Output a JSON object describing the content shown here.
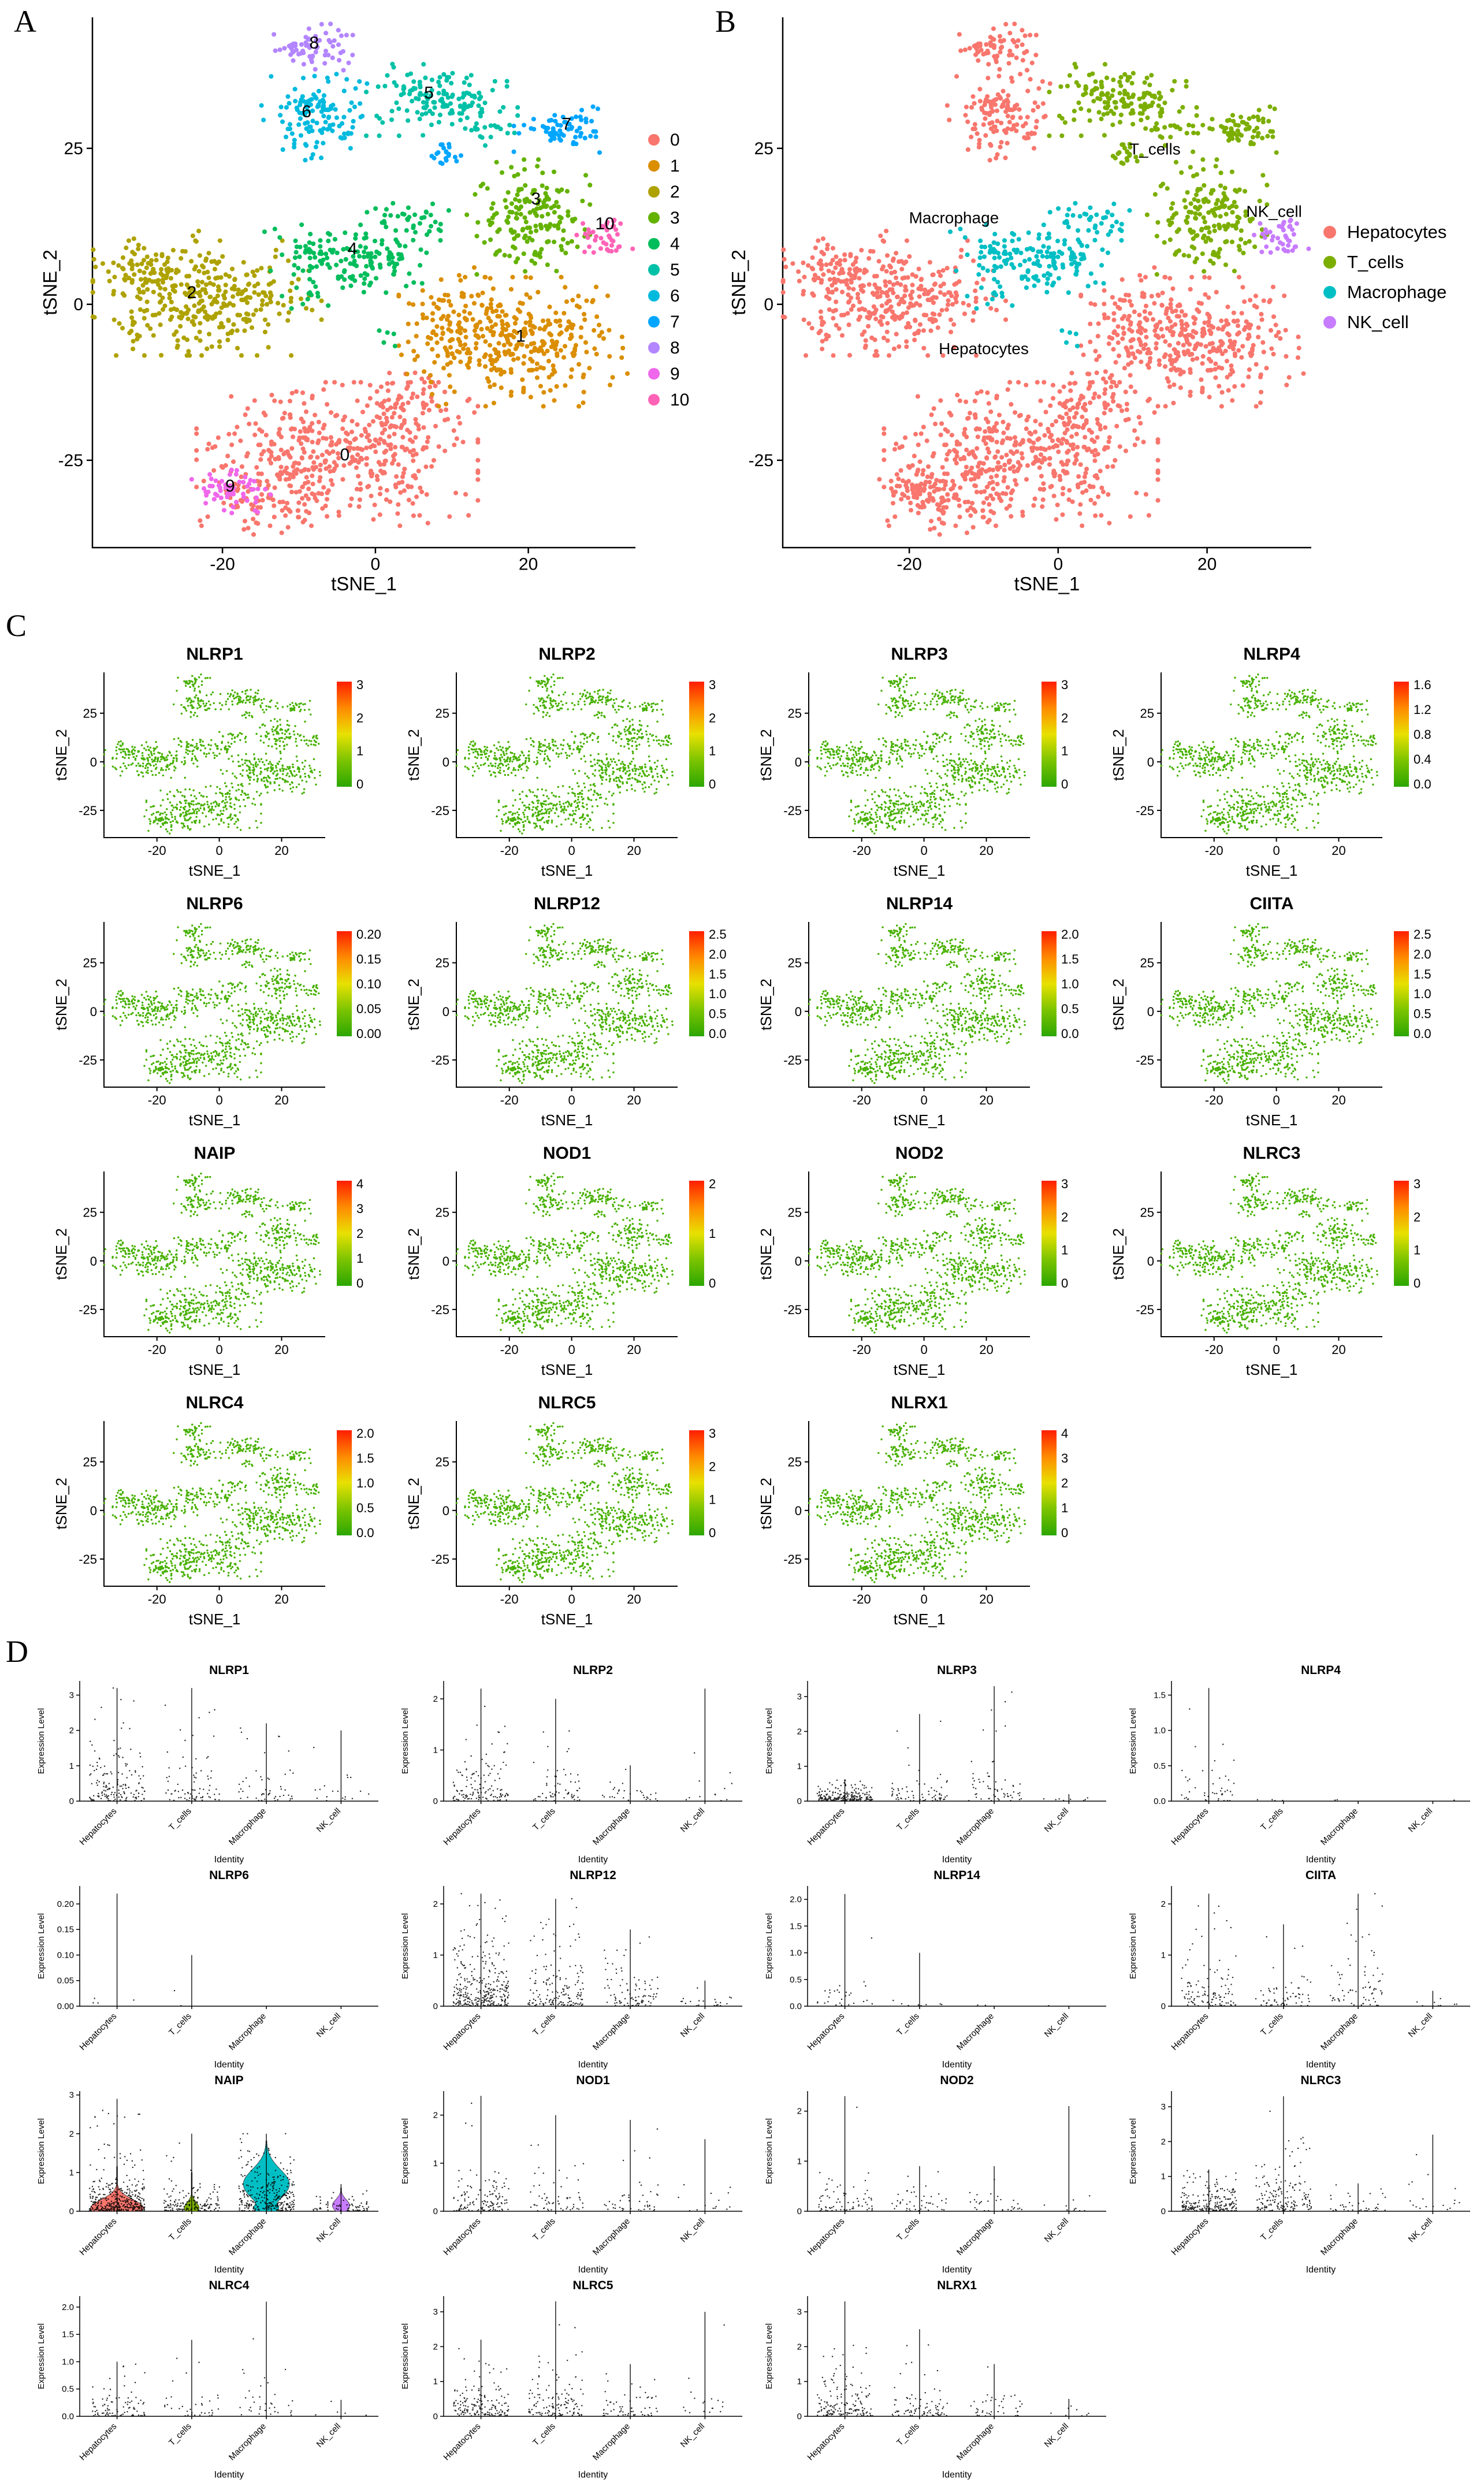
{
  "chart_data": {
    "panel_labels": {
      "a": "A",
      "b": "B",
      "c": "C",
      "d": "D"
    },
    "tsne": {
      "type": "scatter",
      "x_label": "tSNE_1",
      "y_label": "tSNE_2",
      "x_ticks": [
        "-20",
        "0",
        "20"
      ],
      "y_ticks": [
        "-25",
        "0",
        "25"
      ],
      "x_lim": [
        -37,
        34
      ],
      "y_lim": [
        -39,
        46
      ],
      "clusters": [
        {
          "id": "0",
          "color": "#F8766D",
          "label_pos": [
            -4,
            -25
          ],
          "blobs": [
            [
              -5,
              -24,
              8,
              5,
              420
            ],
            [
              -14,
              -30,
              4,
              3,
              90
            ],
            [
              4,
              -16,
              4,
              3,
              70
            ]
          ]
        },
        {
          "id": "1",
          "color": "#DB8E00",
          "label_pos": [
            19,
            -6
          ],
          "blobs": [
            [
              18,
              -6,
              6.5,
              4.5,
              360
            ],
            [
              10,
              -1,
              3,
              3,
              50
            ]
          ]
        },
        {
          "id": "2",
          "color": "#AEA200",
          "label_pos": [
            -24,
            1
          ],
          "blobs": [
            [
              -22,
              1,
              6.5,
              4,
              330
            ],
            [
              -30,
              6,
              3,
              2.5,
              60
            ]
          ]
        },
        {
          "id": "3",
          "color": "#64B200",
          "label_pos": [
            21,
            16
          ],
          "blobs": [
            [
              20,
              14,
              3.5,
              4,
              170
            ]
          ]
        },
        {
          "id": "4",
          "color": "#00BD5C",
          "label_pos": [
            -3,
            8
          ],
          "blobs": [
            [
              -3,
              7,
              5,
              2.5,
              150
            ],
            [
              4,
              12,
              3,
              2.5,
              50
            ],
            [
              -9,
              0,
              2,
              2,
              8
            ],
            [
              1,
              -4,
              1.5,
              1.5,
              5
            ]
          ]
        },
        {
          "id": "5",
          "color": "#00C1A7",
          "label_pos": [
            7,
            33
          ],
          "blobs": [
            [
              8,
              33,
              4,
              2.6,
              130
            ],
            [
              14,
              30,
              2,
              2,
              35
            ]
          ]
        },
        {
          "id": "6",
          "color": "#00BADE",
          "label_pos": [
            -9,
            30
          ],
          "blobs": [
            [
              -8,
              30,
              3,
              3,
              130
            ]
          ]
        },
        {
          "id": "7",
          "color": "#00A6FF",
          "label_pos": [
            25,
            28
          ],
          "blobs": [
            [
              25,
              28,
              3,
              1.6,
              65
            ],
            [
              9,
              24,
              1.5,
              1.2,
              20
            ]
          ]
        },
        {
          "id": "8",
          "color": "#B385FF",
          "label_pos": [
            -8,
            41
          ],
          "blobs": [
            [
              -8,
              41,
              2.5,
              1.8,
              70
            ]
          ]
        },
        {
          "id": "9",
          "color": "#EF67EB",
          "label_pos": [
            -19,
            -30
          ],
          "blobs": [
            [
              -19,
              -30,
              2.4,
              1.5,
              60
            ]
          ]
        },
        {
          "id": "10",
          "color": "#FF63B6",
          "label_pos": [
            30,
            12
          ],
          "blobs": [
            [
              30,
              11,
              1.6,
              1.4,
              40
            ]
          ]
        }
      ]
    },
    "panelB": {
      "type": "scatter",
      "cell_types": [
        {
          "name": "Hepatocytes",
          "color": "#F8766D",
          "clusters": [
            "0",
            "1",
            "2",
            "6",
            "8",
            "9"
          ]
        },
        {
          "name": "T_cells",
          "color": "#7CAE00",
          "clusters": [
            "3",
            "5",
            "7"
          ]
        },
        {
          "name": "Macrophage",
          "color": "#00BFC4",
          "clusters": [
            "4"
          ]
        },
        {
          "name": "NK_cell",
          "color": "#C77CFF",
          "clusters": [
            "10"
          ]
        }
      ],
      "annotations": [
        {
          "text": "T_cells",
          "pos": [
            13,
            24
          ]
        },
        {
          "text": "Macrophage",
          "pos": [
            -14,
            13
          ]
        },
        {
          "text": "NK_cell",
          "pos": [
            29,
            14
          ]
        },
        {
          "text": "Hepatocytes",
          "pos": [
            -10,
            -8
          ]
        }
      ]
    },
    "panelC": {
      "type": "scatter-grid",
      "point_color": "#47B000",
      "gradient_stops": [
        [
          "0%",
          "#FF1E00"
        ],
        [
          "25%",
          "#FF8A00"
        ],
        [
          "50%",
          "#E8E100"
        ],
        [
          "75%",
          "#7CC400"
        ],
        [
          "100%",
          "#2CA600"
        ]
      ],
      "genes": [
        {
          "name": "NLRP1",
          "legend_ticks": [
            "3",
            "2",
            "1",
            "0"
          ]
        },
        {
          "name": "NLRP2",
          "legend_ticks": [
            "3",
            "2",
            "1",
            "0"
          ]
        },
        {
          "name": "NLRP3",
          "legend_ticks": [
            "3",
            "2",
            "1",
            "0"
          ]
        },
        {
          "name": "NLRP4",
          "legend_ticks": [
            "1.6",
            "1.2",
            "0.8",
            "0.4",
            "0.0"
          ]
        },
        {
          "name": "NLRP6",
          "legend_ticks": [
            "0.20",
            "0.15",
            "0.10",
            "0.05",
            "0.00"
          ]
        },
        {
          "name": "NLRP12",
          "legend_ticks": [
            "2.5",
            "2.0",
            "1.5",
            "1.0",
            "0.5",
            "0.0"
          ]
        },
        {
          "name": "NLRP14",
          "legend_ticks": [
            "2.0",
            "1.5",
            "1.0",
            "0.5",
            "0.0"
          ]
        },
        {
          "name": "CIITA",
          "legend_ticks": [
            "2.5",
            "2.0",
            "1.5",
            "1.0",
            "0.5",
            "0.0"
          ]
        },
        {
          "name": "NAIP",
          "legend_ticks": [
            "4",
            "3",
            "2",
            "1",
            "0"
          ]
        },
        {
          "name": "NOD1",
          "legend_ticks": [
            "2",
            "1",
            "0"
          ]
        },
        {
          "name": "NOD2",
          "legend_ticks": [
            "3",
            "2",
            "1",
            "0"
          ]
        },
        {
          "name": "NLRC3",
          "legend_ticks": [
            "3",
            "2",
            "1",
            "0"
          ]
        },
        {
          "name": "NLRC4",
          "legend_ticks": [
            "2.0",
            "1.5",
            "1.0",
            "0.5",
            "0.0"
          ]
        },
        {
          "name": "NLRC5",
          "legend_ticks": [
            "3",
            "2",
            "1",
            "0"
          ]
        },
        {
          "name": "NLRX1",
          "legend_ticks": [
            "4",
            "3",
            "2",
            "1",
            "0"
          ]
        }
      ]
    },
    "panelD": {
      "type": "violin-grid",
      "y_label": "Expression Level",
      "x_label": "Identity",
      "categories": [
        "Hepatocytes",
        "T_cells",
        "Macrophage",
        "NK_cell"
      ],
      "category_colors": [
        "#F8766D",
        "#7CAE00",
        "#00BFC4",
        "#C77CFF"
      ],
      "genes": [
        {
          "name": "NLRP1",
          "y_ticks": [
            "0",
            "1",
            "2",
            "3"
          ],
          "y_max": 3.4,
          "spikes": [
            3.2,
            3.2,
            2.2,
            2.0
          ],
          "points": [
            160,
            80,
            50,
            18
          ],
          "jmax": [
            0.9,
            0.8,
            0.7,
            0.5
          ]
        },
        {
          "name": "NLRP2",
          "y_ticks": [
            "0",
            "1",
            "2"
          ],
          "y_max": 2.35,
          "spikes": [
            2.2,
            2.0,
            0.7,
            2.2
          ],
          "points": [
            130,
            60,
            30,
            12
          ],
          "jmax": [
            0.6,
            0.5,
            0.3,
            0.4
          ]
        },
        {
          "name": "NLRP3",
          "y_ticks": [
            "0",
            "1",
            "2",
            "3"
          ],
          "y_max": 3.45,
          "spikes": [
            0.6,
            2.5,
            3.3,
            0.2
          ],
          "points": [
            220,
            70,
            60,
            8
          ],
          "jmax": [
            0.25,
            0.5,
            0.6,
            0.1
          ]
        },
        {
          "name": "NLRP4",
          "y_ticks": [
            "0.0",
            "0.5",
            "1.0",
            "1.5"
          ],
          "y_max": 1.7,
          "spikes": [
            1.6,
            0,
            0,
            0
          ],
          "points": [
            45,
            4,
            2,
            1
          ],
          "jmax": [
            0.3,
            0.04,
            0.04,
            0.02
          ]
        },
        {
          "name": "NLRP6",
          "y_ticks": [
            "0.00",
            "0.05",
            "0.10",
            "0.15",
            "0.20"
          ],
          "y_max": 0.235,
          "spikes": [
            0.22,
            0.1,
            0,
            0
          ],
          "points": [
            4,
            2,
            0,
            0
          ],
          "jmax": [
            0.01,
            0.005,
            0,
            0
          ]
        },
        {
          "name": "NLRP12",
          "y_ticks": [
            "0",
            "1",
            "2"
          ],
          "y_max": 2.35,
          "spikes": [
            2.2,
            2.1,
            1.5,
            0.5
          ],
          "points": [
            320,
            160,
            90,
            20
          ],
          "jmax": [
            0.7,
            0.6,
            0.5,
            0.2
          ]
        },
        {
          "name": "NLRP14",
          "y_ticks": [
            "0.0",
            "0.5",
            "1.0",
            "1.5",
            "2.0"
          ],
          "y_max": 2.25,
          "spikes": [
            2.1,
            1.0,
            0,
            0
          ],
          "points": [
            28,
            8,
            2,
            1
          ],
          "jmax": [
            0.3,
            0.1,
            0.02,
            0.01
          ]
        },
        {
          "name": "CIITA",
          "y_ticks": [
            "0",
            "1",
            "2"
          ],
          "y_max": 2.35,
          "spikes": [
            2.2,
            1.6,
            2.2,
            0.3
          ],
          "points": [
            110,
            60,
            70,
            8
          ],
          "jmax": [
            0.6,
            0.5,
            0.8,
            0.1
          ]
        },
        {
          "name": "NAIP",
          "y_ticks": [
            "0",
            "1",
            "2",
            "3"
          ],
          "y_max": 3.1,
          "spikes": [
            2.9,
            2.0,
            2.0,
            0.7
          ],
          "points": [
            420,
            160,
            320,
            70
          ],
          "jmax": [
            0.55,
            0.35,
            0.8,
            0.25
          ],
          "violins": [
            {
              "segments": [
                [
                  0.08,
                  0.22,
                  46
                ]
              ],
              "top": 1.15
            },
            {
              "segments": [
                [
                  0.08,
                  0.15,
                  13
                ]
              ],
              "top": 1.0
            },
            {
              "segments": [
                [
                  0.7,
                  0.38,
                  40
                ],
                [
                  0.1,
                  0.15,
                  22
                ]
              ],
              "top": 1.8
            },
            {
              "segments": [
                [
                  0.15,
                  0.15,
                  15
                ]
              ],
              "top": 0.6
            }
          ]
        },
        {
          "name": "NOD1",
          "y_ticks": [
            "0",
            "1",
            "2"
          ],
          "y_max": 2.5,
          "spikes": [
            2.4,
            2.0,
            1.9,
            1.5
          ],
          "points": [
            130,
            60,
            45,
            14
          ],
          "jmax": [
            0.5,
            0.5,
            0.4,
            0.3
          ]
        },
        {
          "name": "NOD2",
          "y_ticks": [
            "0",
            "1",
            "2"
          ],
          "y_max": 2.4,
          "spikes": [
            2.3,
            0.9,
            0.9,
            2.1
          ],
          "points": [
            70,
            45,
            30,
            10
          ],
          "jmax": [
            0.4,
            0.3,
            0.3,
            0.3
          ]
        },
        {
          "name": "NLRC3",
          "y_ticks": [
            "0",
            "1",
            "2",
            "3"
          ],
          "y_max": 3.45,
          "spikes": [
            1.2,
            3.3,
            0.8,
            2.2
          ],
          "points": [
            230,
            170,
            40,
            18
          ],
          "jmax": [
            0.5,
            0.8,
            0.3,
            0.5
          ]
        },
        {
          "name": "NLRC4",
          "y_ticks": [
            "0.0",
            "0.5",
            "1.0",
            "1.5",
            "2.0"
          ],
          "y_max": 2.2,
          "spikes": [
            1.0,
            1.4,
            2.1,
            0.3
          ],
          "points": [
            90,
            35,
            35,
            5
          ],
          "jmax": [
            0.3,
            0.3,
            0.5,
            0.1
          ]
        },
        {
          "name": "NLRC5",
          "y_ticks": [
            "0",
            "1",
            "2",
            "3"
          ],
          "y_max": 3.45,
          "spikes": [
            2.2,
            3.3,
            1.5,
            3.0
          ],
          "points": [
            160,
            130,
            60,
            18
          ],
          "jmax": [
            0.6,
            0.8,
            0.5,
            0.5
          ]
        },
        {
          "name": "NLRX1",
          "y_ticks": [
            "0",
            "1",
            "2",
            "3"
          ],
          "y_max": 3.45,
          "spikes": [
            3.3,
            2.5,
            1.5,
            0.5
          ],
          "points": [
            160,
            80,
            40,
            8
          ],
          "jmax": [
            0.8,
            0.6,
            0.4,
            0.2
          ]
        }
      ]
    }
  }
}
